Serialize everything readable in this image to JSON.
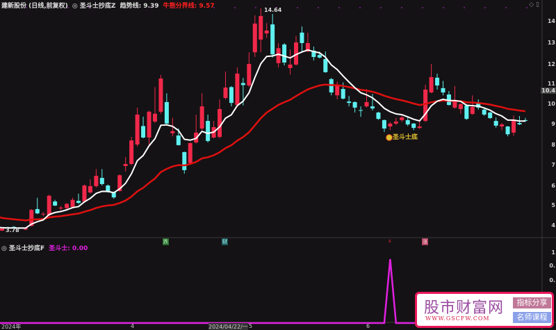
{
  "header": {
    "stock": "建新股份 (日线,前复权)",
    "indicator": "◎ 圣斗士抄底Z",
    "trend_label": "趋势线: 9.39",
    "bullbear_label": "牛熊分界线: 9.57"
  },
  "lower_header": {
    "indicator": "◎ 圣斗士抄底F",
    "value_label": "圣斗士: 0.00"
  },
  "annotations": {
    "high": "14.64",
    "low": "3.78",
    "signal": "圣斗士底",
    "markers": [
      "跌",
      "财",
      "s",
      "涨"
    ]
  },
  "price_axis": [
    "14",
    "13",
    "12",
    "11",
    "10",
    "9",
    "8",
    "7",
    "6",
    "5",
    "4"
  ],
  "price_axis_current": "10.4",
  "lower_axis": [
    "1",
    "0.",
    "0."
  ],
  "time_axis": [
    "2024年",
    "4",
    "2024/04/22/一",
    "5",
    "6"
  ],
  "colors": {
    "up": "#f0284a",
    "down": "#5ff0f0",
    "trend": "#ffffff",
    "bullbear": "#e01010",
    "signal": "#e020e0",
    "background": "#141214"
  },
  "chart_data": {
    "type": "candlestick",
    "price_range": [
      3.6,
      14.7
    ],
    "candles_ohlc": [
      [
        3.8,
        3.95,
        3.78,
        3.9
      ],
      [
        3.95,
        4.0,
        3.88,
        3.9
      ],
      [
        3.98,
        4.02,
        3.9,
        3.92
      ],
      [
        3.93,
        3.96,
        3.88,
        3.9
      ],
      [
        3.85,
        3.95,
        3.82,
        3.92
      ],
      [
        4.03,
        4.85,
        4.0,
        4.81
      ],
      [
        4.85,
        5.4,
        4.6,
        4.64
      ],
      [
        4.6,
        4.7,
        4.5,
        4.62
      ],
      [
        4.55,
        5.55,
        4.5,
        5.5
      ],
      [
        5.22,
        5.3,
        5.0,
        5.02
      ],
      [
        4.88,
        5.0,
        4.8,
        4.92
      ],
      [
        4.9,
        5.15,
        4.85,
        5.1
      ],
      [
        4.95,
        5.4,
        4.9,
        5.3
      ],
      [
        5.25,
        5.6,
        5.1,
        5.15
      ],
      [
        5.22,
        6.05,
        5.2,
        6.0
      ],
      [
        5.66,
        6.3,
        5.6,
        5.97
      ],
      [
        5.97,
        6.8,
        5.9,
        6.47
      ],
      [
        6.37,
        6.8,
        6.0,
        6.07
      ],
      [
        6.0,
        6.05,
        5.65,
        5.7
      ],
      [
        5.66,
        5.7,
        5.35,
        5.42
      ],
      [
        5.73,
        6.55,
        5.7,
        6.5
      ],
      [
        6.95,
        7.39,
        6.68,
        7.05
      ],
      [
        7.05,
        8.37,
        7.0,
        8.2
      ],
      [
        8.0,
        9.8,
        7.9,
        9.46
      ],
      [
        8.9,
        9.36,
        8.3,
        8.34
      ],
      [
        8.34,
        9.65,
        7.93,
        9.6
      ],
      [
        9.12,
        10.8,
        9.05,
        9.5
      ],
      [
        9.6,
        11.4,
        9.5,
        11.22
      ],
      [
        10.07,
        10.5,
        9.0,
        9.02
      ],
      [
        8.55,
        9.3,
        8.4,
        8.65
      ],
      [
        8.44,
        8.78,
        7.95,
        7.97
      ],
      [
        7.63,
        7.65,
        6.58,
        6.75
      ],
      [
        7.1,
        8.1,
        7.05,
        8.07
      ],
      [
        8.1,
        9.46,
        8.05,
        8.58
      ],
      [
        8.78,
        10.5,
        8.7,
        9.86
      ],
      [
        9.15,
        9.46,
        8.1,
        8.17
      ],
      [
        8.34,
        9.15,
        8.3,
        8.85
      ],
      [
        8.37,
        10.2,
        8.3,
        9.73
      ],
      [
        10.27,
        11.56,
        10.2,
        10.78
      ],
      [
        10.8,
        10.85,
        9.86,
        10.03
      ],
      [
        9.93,
        11.76,
        9.9,
        11.46
      ],
      [
        11.0,
        11.25,
        9.9,
        10.9
      ],
      [
        10.88,
        12.5,
        10.8,
        11.93
      ],
      [
        12.5,
        14.3,
        12.27,
        13.9
      ],
      [
        13.12,
        14.64,
        12.5,
        14.27
      ],
      [
        13.42,
        13.93,
        13.2,
        13.56
      ],
      [
        13.86,
        14.37,
        12.24,
        12.4
      ],
      [
        11.97,
        12.95,
        11.76,
        12.7
      ],
      [
        12.88,
        12.95,
        11.86,
        12.0
      ],
      [
        11.73,
        12.64,
        11.42,
        11.9
      ],
      [
        11.9,
        13.3,
        11.85,
        12.98
      ],
      [
        13.46,
        13.76,
        12.5,
        12.95
      ],
      [
        12.54,
        13.46,
        12.5,
        12.95
      ],
      [
        12.58,
        12.78,
        12.1,
        12.27
      ],
      [
        12.37,
        12.54,
        12.2,
        12.24
      ],
      [
        12.17,
        12.54,
        11.5,
        11.53
      ],
      [
        11.19,
        11.25,
        10.4,
        10.54
      ],
      [
        10.4,
        11.07,
        10.2,
        10.88
      ],
      [
        10.71,
        11.03,
        10.2,
        10.24
      ],
      [
        10.1,
        10.37,
        9.86,
        10.03
      ],
      [
        10.07,
        10.1,
        9.56,
        9.8
      ],
      [
        9.68,
        9.86,
        9.35,
        9.66
      ],
      [
        9.86,
        10.7,
        9.8,
        10.07
      ],
      [
        9.86,
        10.47,
        9.66,
        9.76
      ],
      [
        9.56,
        9.6,
        9.2,
        9.25
      ],
      [
        9.19,
        9.22,
        8.61,
        8.78
      ],
      [
        8.88,
        9.1,
        8.7,
        9.02
      ],
      [
        9.02,
        9.3,
        8.95,
        9.12
      ],
      [
        9.19,
        9.4,
        9.1,
        9.32
      ],
      [
        9.19,
        9.32,
        8.9,
        8.98
      ],
      [
        9.02,
        9.05,
        8.7,
        8.81
      ],
      [
        8.81,
        9.15,
        8.75,
        8.88
      ],
      [
        9.15,
        10.92,
        9.1,
        10.68
      ],
      [
        10.54,
        11.93,
        10.5,
        11.29
      ],
      [
        11.26,
        11.46,
        10.68,
        10.88
      ],
      [
        10.75,
        11.1,
        10.4,
        10.54
      ],
      [
        10.44,
        10.61,
        9.9,
        9.93
      ],
      [
        9.8,
        10.85,
        9.75,
        10.14
      ],
      [
        9.73,
        10.0,
        9.5,
        9.97
      ],
      [
        9.9,
        9.95,
        9.2,
        9.25
      ],
      [
        9.49,
        10.4,
        9.45,
        9.83
      ],
      [
        10.0,
        10.2,
        9.7,
        9.8
      ],
      [
        9.7,
        9.75,
        9.4,
        9.46
      ],
      [
        9.56,
        9.6,
        9.25,
        9.29
      ],
      [
        9.15,
        9.32,
        8.82,
        8.92
      ],
      [
        8.88,
        9.05,
        8.7,
        8.98
      ],
      [
        8.88,
        8.9,
        8.4,
        8.5
      ],
      [
        8.58,
        9.42,
        8.43,
        9.19
      ],
      [
        9.05,
        9.39,
        8.95,
        8.98
      ],
      [
        9.19,
        9.3,
        9.1,
        9.15
      ]
    ],
    "trend_line_last": 9.39,
    "bullbear_line_last": 9.57,
    "signal_series": {
      "name": "圣斗士",
      "spike_index": 66,
      "spike_value": 1,
      "base_value": 0,
      "ylim": [
        0,
        1.1
      ]
    }
  }
}
